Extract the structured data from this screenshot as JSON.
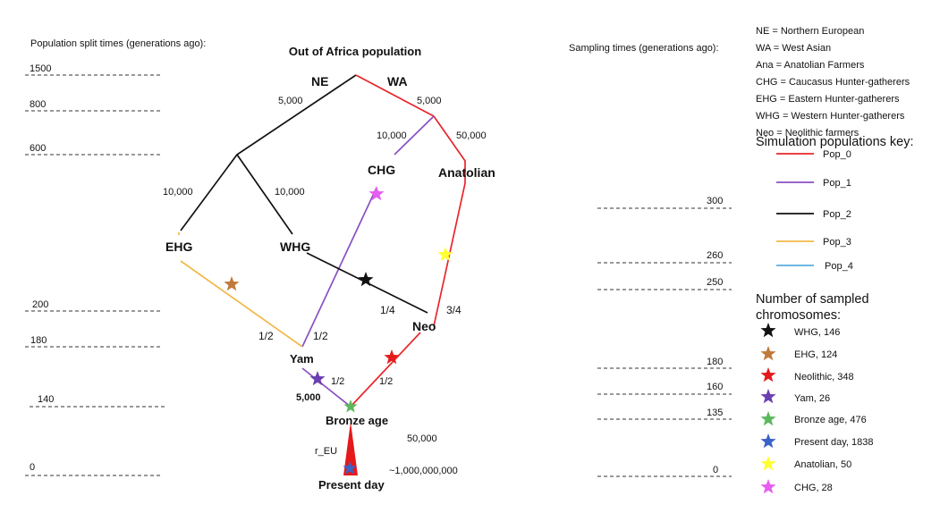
{
  "diagram": {
    "root_label": "Out of Africa population",
    "present_label": "Present day",
    "nodes": {
      "ne": "NE",
      "wa": "WA",
      "chg": "CHG",
      "anatolian": "Anatolian",
      "ehg": "EHG",
      "whg": "WHG",
      "neo": "Neo",
      "yam": "Yam",
      "bronze": "Bronze age"
    },
    "edge_labels": {
      "ne_size": "5,000",
      "wa_size": "5,000",
      "chg_size": "10,000",
      "anatolian_size": "50,000",
      "ehg_size": "10,000",
      "whg_size": "10,000",
      "neo_whg_frac": "1/4",
      "neo_anatolian_frac": "3/4",
      "yam_ehg_frac": "1/2",
      "yam_chg_frac": "1/2",
      "bronze_yam_frac": "1/2",
      "bronze_neo_frac": "1/2",
      "yam_size": "5,000",
      "bronze_size": "50,000",
      "growth_rate": "r_EU",
      "present_size": "~1,000,000,000"
    }
  },
  "split_axis": {
    "title": "Population split times (generations ago):",
    "ticks": [
      "1500",
      "800",
      "600",
      "200",
      "180",
      "140",
      "0"
    ]
  },
  "sampling_axis": {
    "title": "Sampling times (generations ago):",
    "ticks": [
      "300",
      "260",
      "250",
      "180",
      "160",
      "135",
      "0"
    ]
  },
  "abbreviations": [
    "NE = Northern European",
    "WA = West Asian",
    "Ana = Anatolian Farmers",
    "CHG = Caucasus Hunter-gatherers",
    "EHG = Eastern Hunter-gatherers",
    "WHG = Western Hunter-gatherers",
    "Neo = Neolithic farmers"
  ],
  "populations_key": {
    "title": "Simulation populations key:",
    "items": [
      {
        "label": "Pop_0",
        "color": "#e8252a"
      },
      {
        "label": "Pop_1",
        "color": "#8a4fc2"
      },
      {
        "label": "Pop_2",
        "color": "#111111"
      },
      {
        "label": "Pop_3",
        "color": "#f2b84a"
      },
      {
        "label": "Pop_4",
        "color": "#5aaee0"
      }
    ]
  },
  "sampled_key": {
    "title_line1": "Number of sampled",
    "title_line2": "chromosomes:",
    "items": [
      {
        "label": "WHG, 146",
        "color": "#111111"
      },
      {
        "label": "EHG, 124",
        "color": "#c07a3c"
      },
      {
        "label": "Neolithic, 348",
        "color": "#e41a1c"
      },
      {
        "label": "Yam, 26",
        "color": "#6a3fb0"
      },
      {
        "label": "Bronze age, 476",
        "color": "#5cb85c"
      },
      {
        "label": "Present day, 1838",
        "color": "#3a62c8"
      },
      {
        "label": "Anatolian, 50",
        "color": "#ffff33"
      },
      {
        "label": "CHG, 28",
        "color": "#e75ef0"
      }
    ]
  },
  "colors": {
    "pop0": "#e8252a",
    "pop1": "#8a4fc2",
    "pop2": "#111111",
    "pop3": "#f2b84a",
    "cone": "#e41a1c"
  }
}
